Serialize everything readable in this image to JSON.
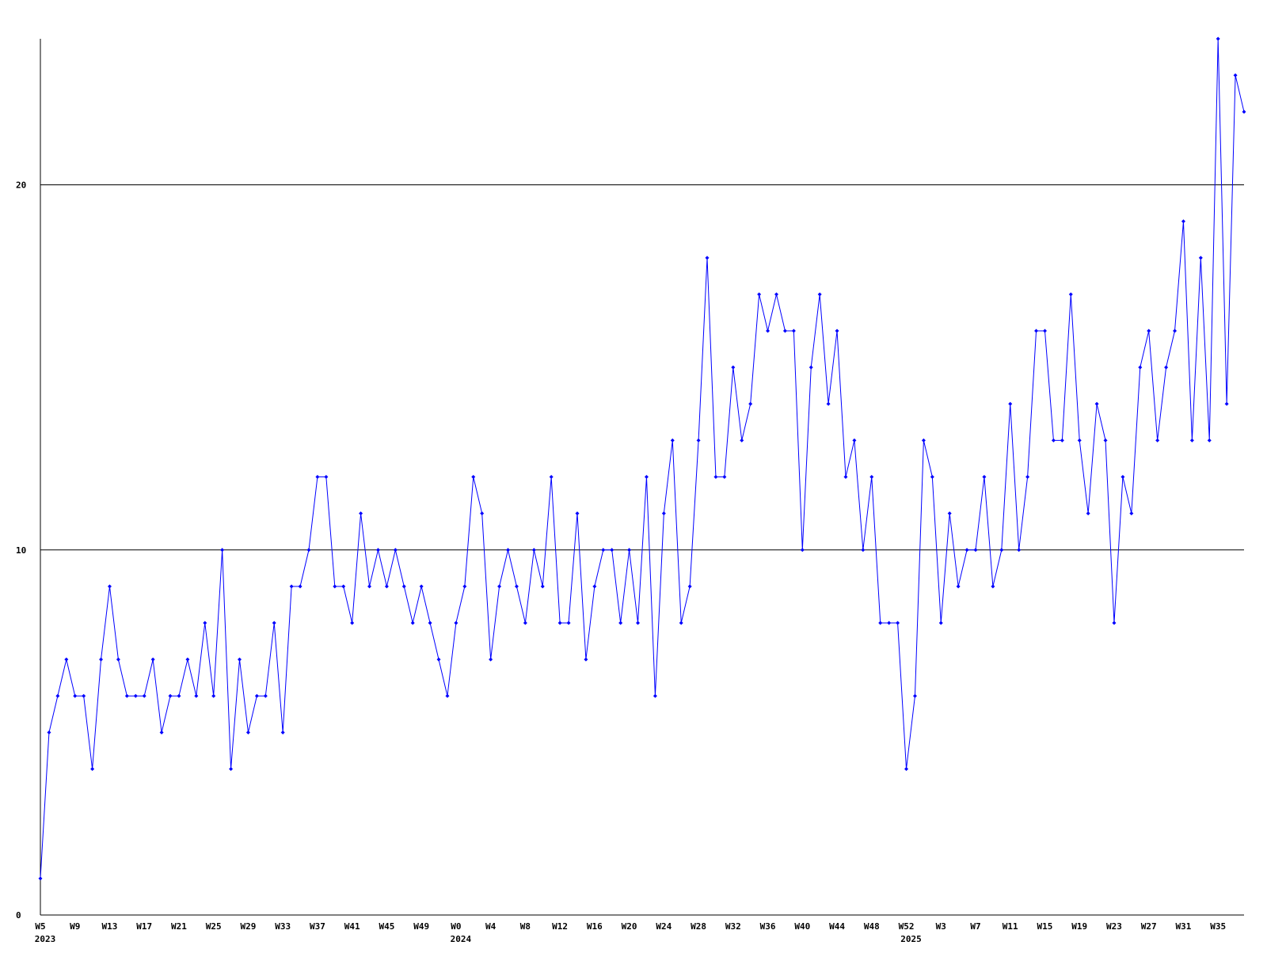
{
  "chart_data": {
    "type": "line",
    "categories": [
      "W5",
      null,
      null,
      null,
      "W9",
      null,
      null,
      null,
      "W13",
      null,
      null,
      null,
      "W17",
      null,
      null,
      null,
      "W21",
      null,
      null,
      null,
      "W25",
      null,
      null,
      null,
      "W29",
      null,
      null,
      null,
      "W33",
      null,
      null,
      null,
      "W37",
      null,
      null,
      null,
      "W41",
      null,
      null,
      null,
      "W45",
      null,
      null,
      null,
      "W49",
      null,
      null,
      null,
      "W0",
      null,
      null,
      null,
      "W4",
      null,
      null,
      null,
      "W8",
      null,
      null,
      null,
      "W12",
      null,
      null,
      null,
      "W16",
      null,
      null,
      null,
      "W20",
      null,
      null,
      null,
      "W24",
      null,
      null,
      null,
      "W28",
      null,
      null,
      null,
      "W32",
      null,
      null,
      null,
      "W36",
      null,
      null,
      null,
      "W40",
      null,
      null,
      null,
      "W44",
      null,
      null,
      null,
      "W48",
      null,
      null,
      null,
      "W52",
      null,
      null,
      null,
      "W3",
      null,
      null,
      null,
      "W7",
      null,
      null,
      null,
      "W11",
      null,
      null,
      null,
      "W15",
      null,
      null,
      null,
      "W19",
      null,
      null,
      null,
      "W23",
      null,
      null,
      null,
      "W27",
      null,
      null,
      null,
      "W31",
      null,
      null,
      null,
      "W35",
      null,
      null,
      null
    ],
    "years": [
      "2023",
      null,
      null,
      null,
      null,
      null,
      null,
      null,
      null,
      null,
      null,
      null,
      null,
      null,
      null,
      null,
      null,
      null,
      null,
      null,
      null,
      null,
      null,
      null,
      null,
      null,
      null,
      null,
      null,
      null,
      null,
      null,
      null,
      null,
      null,
      null,
      null,
      null,
      null,
      null,
      null,
      null,
      null,
      null,
      null,
      null,
      null,
      null,
      "2024",
      null,
      null,
      null,
      null,
      null,
      null,
      null,
      null,
      null,
      null,
      null,
      null,
      null,
      null,
      null,
      null,
      null,
      null,
      null,
      null,
      null,
      null,
      null,
      null,
      null,
      null,
      null,
      null,
      null,
      null,
      null,
      null,
      null,
      null,
      null,
      null,
      null,
      null,
      null,
      null,
      null,
      null,
      null,
      null,
      null,
      null,
      null,
      null,
      null,
      null,
      null,
      "2025",
      null,
      null,
      null,
      null,
      null,
      null,
      null,
      null,
      null,
      null,
      null,
      null,
      null,
      null,
      null,
      null,
      null,
      null,
      null,
      null,
      null,
      null,
      null,
      null,
      null,
      null,
      null,
      null,
      null,
      null,
      null,
      null,
      null,
      null,
      null,
      null,
      null,
      null,
      null
    ],
    "series": [
      {
        "color": "#0000ff",
        "values": [
          1,
          5,
          6,
          7,
          6,
          6,
          4,
          7,
          9,
          7,
          6,
          6,
          6,
          7,
          5,
          6,
          6,
          7,
          6,
          8,
          6,
          10,
          4,
          7,
          5,
          6,
          6,
          8,
          5,
          9,
          9,
          10,
          12,
          12,
          9,
          9,
          8,
          11,
          9,
          10,
          9,
          10,
          9,
          8,
          9,
          8,
          7,
          6,
          8,
          9,
          12,
          11,
          7,
          9,
          10,
          9,
          8,
          10,
          9,
          12,
          8,
          8,
          11,
          7,
          9,
          10,
          10,
          8,
          10,
          8,
          12,
          6,
          11,
          13,
          8,
          9,
          13,
          18,
          12,
          12,
          15,
          13,
          14,
          17,
          16,
          17,
          16,
          16,
          10,
          15,
          17,
          14,
          16,
          12,
          13,
          10,
          12,
          8,
          8,
          8,
          4,
          6,
          13,
          12,
          8,
          11,
          9,
          10,
          10,
          12,
          9,
          10,
          14,
          10,
          12,
          16,
          16,
          13,
          13,
          17,
          13,
          11,
          14,
          13,
          8,
          12,
          11,
          15,
          16,
          13,
          15,
          16,
          19,
          13,
          18,
          13,
          24,
          14,
          23,
          22
        ]
      }
    ],
    "ylim": [
      0,
      24
    ],
    "yticks": [
      0,
      10,
      20
    ],
    "grid": true
  }
}
